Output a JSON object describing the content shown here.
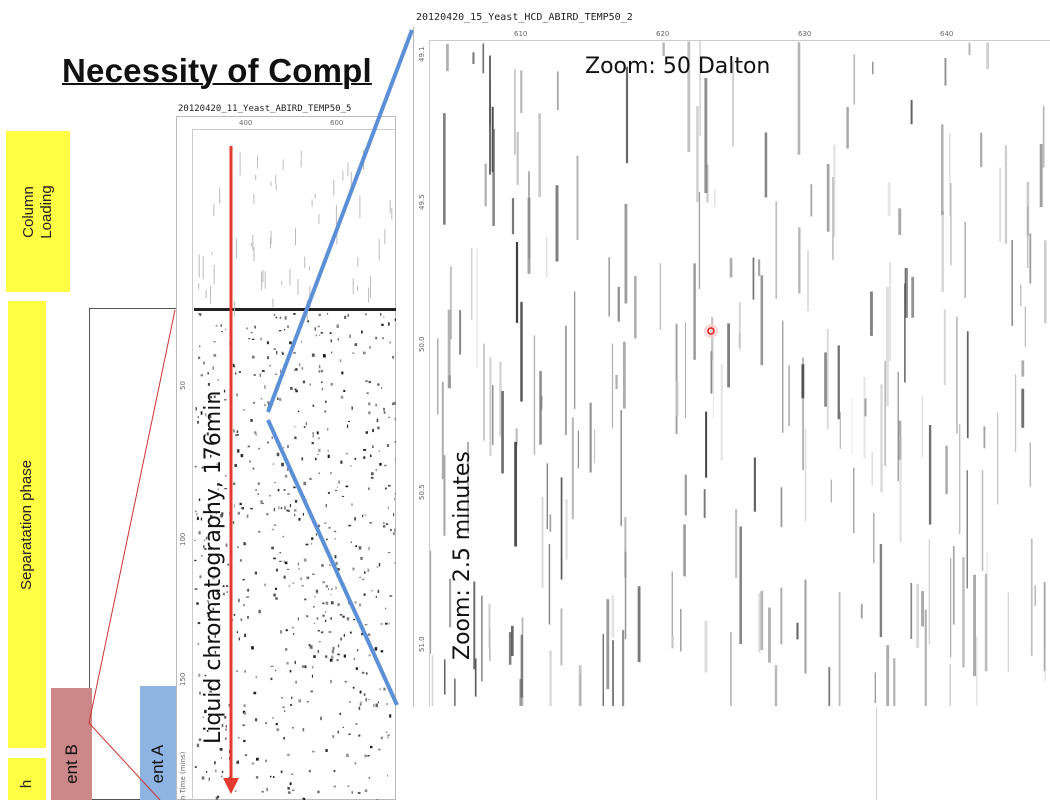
{
  "slide": {
    "title": "Necessity of Compl"
  },
  "phases": [
    {
      "label": "Column\nLoading"
    },
    {
      "label": "Separatation phase"
    },
    {
      "label": "h"
    }
  ],
  "solvents": [
    {
      "label": "ent B",
      "color": "#cc8888"
    },
    {
      "label": "ent A",
      "color": "#8eb4e3"
    }
  ],
  "left_map": {
    "title": "20120420_11_Yeast_ABIRD_TEMP50_5",
    "x_ticks": [
      "400",
      "600"
    ],
    "y_ticks": [
      "50",
      "100",
      "150"
    ],
    "y_axis_label": "n Time (mins)"
  },
  "zoom_map": {
    "title": "20120420_15_Yeast_HCD_ABIRD_TEMP50_2",
    "x_ticks": [
      "610",
      "620",
      "630",
      "640"
    ],
    "y_ticks": [
      "49.1",
      "49.5",
      "50.0",
      "50.5",
      "51.0"
    ]
  },
  "annotations": {
    "lc_label": "Liquid chromatography, 176min",
    "zoom_mass": "Zoom: 50 Dalton",
    "zoom_time": "Zoom: 2.5 minutes"
  },
  "colors": {
    "arrow": "#e53a2f",
    "zoom_lines": "#5b8fd6",
    "phase": "#ffff44"
  }
}
